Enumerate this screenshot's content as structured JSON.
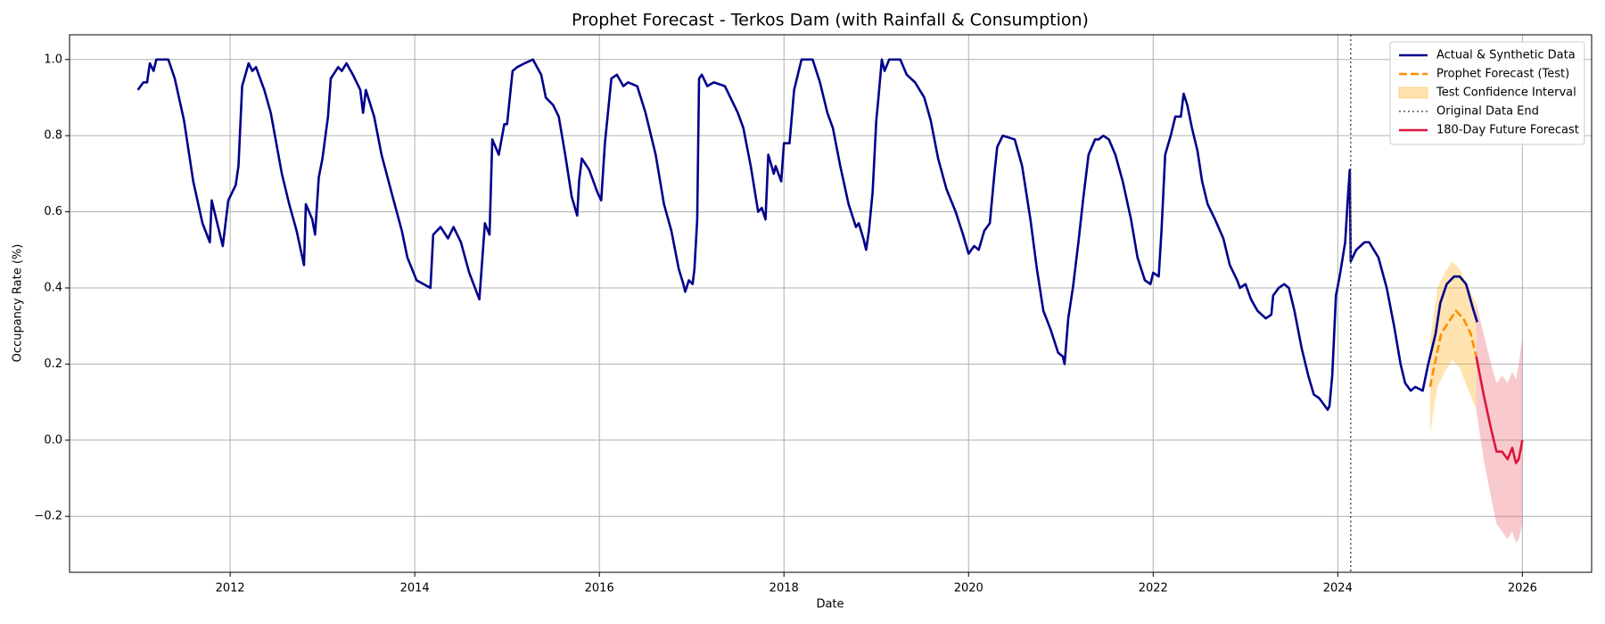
{
  "chart_data": {
    "type": "line",
    "title": "Prophet Forecast - Terkos Dam (with Rainfall & Consumption)",
    "x_label": "Date",
    "y_label": "Occupancy Rate (%)",
    "xlim": [
      2010.26,
      2026.75
    ],
    "ylim": [
      -0.347,
      1.065
    ],
    "xticks": [
      2012,
      2014,
      2016,
      2018,
      2020,
      2022,
      2024,
      2026
    ],
    "yticks": [
      {
        "value": -0.2,
        "label": "−0.2"
      },
      {
        "value": 0,
        "label": "0.0"
      },
      0.2,
      0.4,
      0.6,
      0.8,
      {
        "value": 1,
        "label": "1.0"
      }
    ],
    "grid": true,
    "legend": "upper right",
    "series": [
      {
        "name": "Actual & Synthetic Data",
        "style": "solid",
        "color": "#00008b",
        "x": [
          2011.0,
          2011.06,
          2011.1,
          2011.13,
          2011.17,
          2011.2,
          2011.33,
          2011.4,
          2011.5,
          2011.6,
          2011.7,
          2011.78,
          2011.8,
          2011.92,
          2011.98,
          2012.06,
          2012.09,
          2012.13,
          2012.2,
          2012.24,
          2012.28,
          2012.37,
          2012.44,
          2012.56,
          2012.64,
          2012.72,
          2012.8,
          2012.82,
          2012.89,
          2012.92,
          2012.96,
          2013.0,
          2013.06,
          2013.09,
          2013.17,
          2013.21,
          2013.26,
          2013.33,
          2013.41,
          2013.44,
          2013.47,
          2013.56,
          2013.64,
          2013.76,
          2013.86,
          2013.92,
          2014.02,
          2014.17,
          2014.2,
          2014.28,
          2014.36,
          2014.42,
          2014.5,
          2014.59,
          2014.7,
          2014.73,
          2014.76,
          2014.81,
          2014.84,
          2014.91,
          2014.97,
          2015.0,
          2015.06,
          2015.11,
          2015.19,
          2015.28,
          2015.37,
          2015.42,
          2015.5,
          2015.56,
          2015.63,
          2015.7,
          2015.76,
          2015.78,
          2015.81,
          2015.89,
          2015.98,
          2016.02,
          2016.06,
          2016.13,
          2016.19,
          2016.26,
          2016.31,
          2016.41,
          2016.5,
          2016.61,
          2016.7,
          2016.78,
          2016.86,
          2016.91,
          2016.93,
          2016.97,
          2017.01,
          2017.03,
          2017.06,
          2017.08,
          2017.11,
          2017.17,
          2017.24,
          2017.36,
          2017.42,
          2017.5,
          2017.56,
          2017.64,
          2017.72,
          2017.76,
          2017.8,
          2017.83,
          2017.89,
          2017.91,
          2017.97,
          2018.0,
          2018.06,
          2018.11,
          2018.14,
          2018.19,
          2018.31,
          2018.39,
          2018.47,
          2018.53,
          2018.61,
          2018.7,
          2018.78,
          2018.81,
          2018.86,
          2018.89,
          2018.92,
          2018.96,
          2019.0,
          2019.02,
          2019.06,
          2019.09,
          2019.14,
          2019.26,
          2019.33,
          2019.42,
          2019.52,
          2019.59,
          2019.67,
          2019.76,
          2019.86,
          2019.94,
          2020.0,
          2020.06,
          2020.11,
          2020.17,
          2020.23,
          2020.28,
          2020.31,
          2020.37,
          2020.5,
          2020.58,
          2020.67,
          2020.74,
          2020.81,
          2020.89,
          2020.97,
          2021.02,
          2021.04,
          2021.08,
          2021.13,
          2021.19,
          2021.24,
          2021.3,
          2021.37,
          2021.41,
          2021.46,
          2021.52,
          2021.59,
          2021.67,
          2021.76,
          2021.83,
          2021.91,
          2021.97,
          2022.0,
          2022.06,
          2022.09,
          2022.13,
          2022.19,
          2022.24,
          2022.3,
          2022.33,
          2022.37,
          2022.42,
          2022.48,
          2022.53,
          2022.59,
          2022.67,
          2022.76,
          2022.83,
          2022.91,
          2022.94,
          2023.0,
          2023.06,
          2023.13,
          2023.22,
          2023.28,
          2023.3,
          2023.36,
          2023.42,
          2023.47,
          2023.53,
          2023.61,
          2023.68,
          2023.74,
          2023.8,
          2023.83,
          2023.89,
          2023.91,
          2023.94,
          2023.98,
          2024.02,
          2024.08,
          2024.11,
          2024.13,
          2024.14,
          2024.2,
          2024.29,
          2024.34,
          2024.44,
          2024.53,
          2024.61,
          2024.68,
          2024.73,
          2024.79,
          2024.84,
          2024.92,
          2024.98,
          2025.06,
          2025.11,
          2025.18,
          2025.26,
          2025.32,
          2025.39,
          2025.46,
          2025.51
        ],
        "values": [
          0.92,
          0.94,
          0.94,
          0.99,
          0.97,
          1.0,
          1.0,
          0.95,
          0.84,
          0.68,
          0.57,
          0.52,
          0.63,
          0.51,
          0.63,
          0.67,
          0.72,
          0.93,
          0.99,
          0.97,
          0.98,
          0.92,
          0.86,
          0.7,
          0.62,
          0.55,
          0.46,
          0.62,
          0.58,
          0.54,
          0.69,
          0.74,
          0.85,
          0.95,
          0.98,
          0.97,
          0.99,
          0.96,
          0.92,
          0.86,
          0.92,
          0.85,
          0.75,
          0.64,
          0.55,
          0.48,
          0.42,
          0.4,
          0.54,
          0.56,
          0.53,
          0.56,
          0.52,
          0.44,
          0.37,
          0.47,
          0.57,
          0.54,
          0.79,
          0.75,
          0.83,
          0.83,
          0.97,
          0.98,
          0.99,
          1.0,
          0.96,
          0.9,
          0.88,
          0.85,
          0.75,
          0.64,
          0.59,
          0.68,
          0.74,
          0.71,
          0.65,
          0.63,
          0.78,
          0.95,
          0.96,
          0.93,
          0.94,
          0.93,
          0.86,
          0.75,
          0.62,
          0.55,
          0.45,
          0.41,
          0.39,
          0.42,
          0.41,
          0.45,
          0.58,
          0.95,
          0.96,
          0.93,
          0.94,
          0.93,
          0.9,
          0.86,
          0.82,
          0.72,
          0.6,
          0.61,
          0.58,
          0.75,
          0.7,
          0.72,
          0.68,
          0.78,
          0.78,
          0.92,
          0.95,
          1.0,
          1.0,
          0.94,
          0.86,
          0.82,
          0.72,
          0.62,
          0.56,
          0.57,
          0.53,
          0.5,
          0.55,
          0.65,
          0.84,
          0.89,
          1.0,
          0.97,
          1.0,
          1.0,
          0.96,
          0.94,
          0.9,
          0.84,
          0.74,
          0.66,
          0.6,
          0.54,
          0.49,
          0.51,
          0.5,
          0.55,
          0.57,
          0.7,
          0.77,
          0.8,
          0.79,
          0.72,
          0.58,
          0.45,
          0.34,
          0.29,
          0.23,
          0.22,
          0.2,
          0.32,
          0.4,
          0.52,
          0.63,
          0.75,
          0.79,
          0.79,
          0.8,
          0.79,
          0.75,
          0.68,
          0.58,
          0.48,
          0.42,
          0.41,
          0.44,
          0.43,
          0.55,
          0.75,
          0.8,
          0.85,
          0.85,
          0.91,
          0.88,
          0.82,
          0.76,
          0.68,
          0.62,
          0.58,
          0.53,
          0.46,
          0.42,
          0.4,
          0.41,
          0.37,
          0.34,
          0.32,
          0.33,
          0.38,
          0.4,
          0.41,
          0.4,
          0.34,
          0.24,
          0.17,
          0.12,
          0.11,
          0.1,
          0.08,
          0.09,
          0.17,
          0.38,
          0.43,
          0.52,
          0.64,
          0.71,
          0.47,
          0.5,
          0.52,
          0.52,
          0.48,
          0.4,
          0.3,
          0.2,
          0.15,
          0.13,
          0.14,
          0.13,
          0.2,
          0.28,
          0.36,
          0.41,
          0.43,
          0.43,
          0.41,
          0.35,
          0.31
        ]
      },
      {
        "name": "Prophet Forecast (Test)",
        "style": "dashed",
        "color": "#ff8c00",
        "x": [
          2025.0,
          2025.05,
          2025.12,
          2025.2,
          2025.28,
          2025.36,
          2025.44,
          2025.5
        ],
        "values": [
          0.14,
          0.2,
          0.28,
          0.31,
          0.34,
          0.32,
          0.28,
          0.22
        ]
      },
      {
        "name": "Test Confidence Interval",
        "style": "band",
        "color": "#ffa500",
        "x": [
          2025.0,
          2025.08,
          2025.16,
          2025.24,
          2025.32,
          2025.4,
          2025.5
        ],
        "upper": [
          0.26,
          0.4,
          0.44,
          0.47,
          0.45,
          0.41,
          0.36
        ],
        "lower": [
          0.02,
          0.14,
          0.18,
          0.21,
          0.19,
          0.14,
          0.08
        ]
      },
      {
        "name": "Original Data End",
        "style": "vline",
        "color": "#555555",
        "x": [
          2024.14
        ]
      },
      {
        "name": "180-Day Future Forecast",
        "style": "solid",
        "color": "#dc143c",
        "x": [
          2025.5,
          2025.58,
          2025.66,
          2025.72,
          2025.78,
          2025.84,
          2025.89,
          2025.93,
          2025.96,
          2026.0
        ],
        "values": [
          0.22,
          0.12,
          0.03,
          -0.03,
          -0.03,
          -0.05,
          -0.02,
          -0.06,
          -0.05,
          0
        ]
      },
      {
        "style": "band",
        "color": "#e8505a",
        "x": [
          2025.5,
          2025.58,
          2025.66,
          2025.72,
          2025.78,
          2025.84,
          2025.89,
          2025.93,
          2025.96,
          2026.0
        ],
        "upper": [
          0.36,
          0.28,
          0.2,
          0.15,
          0.17,
          0.15,
          0.18,
          0.16,
          0.2,
          0.27
        ],
        "lower": [
          0.08,
          -0.05,
          -0.15,
          -0.22,
          -0.24,
          -0.26,
          -0.24,
          -0.27,
          -0.26,
          -0.22
        ]
      }
    ]
  }
}
